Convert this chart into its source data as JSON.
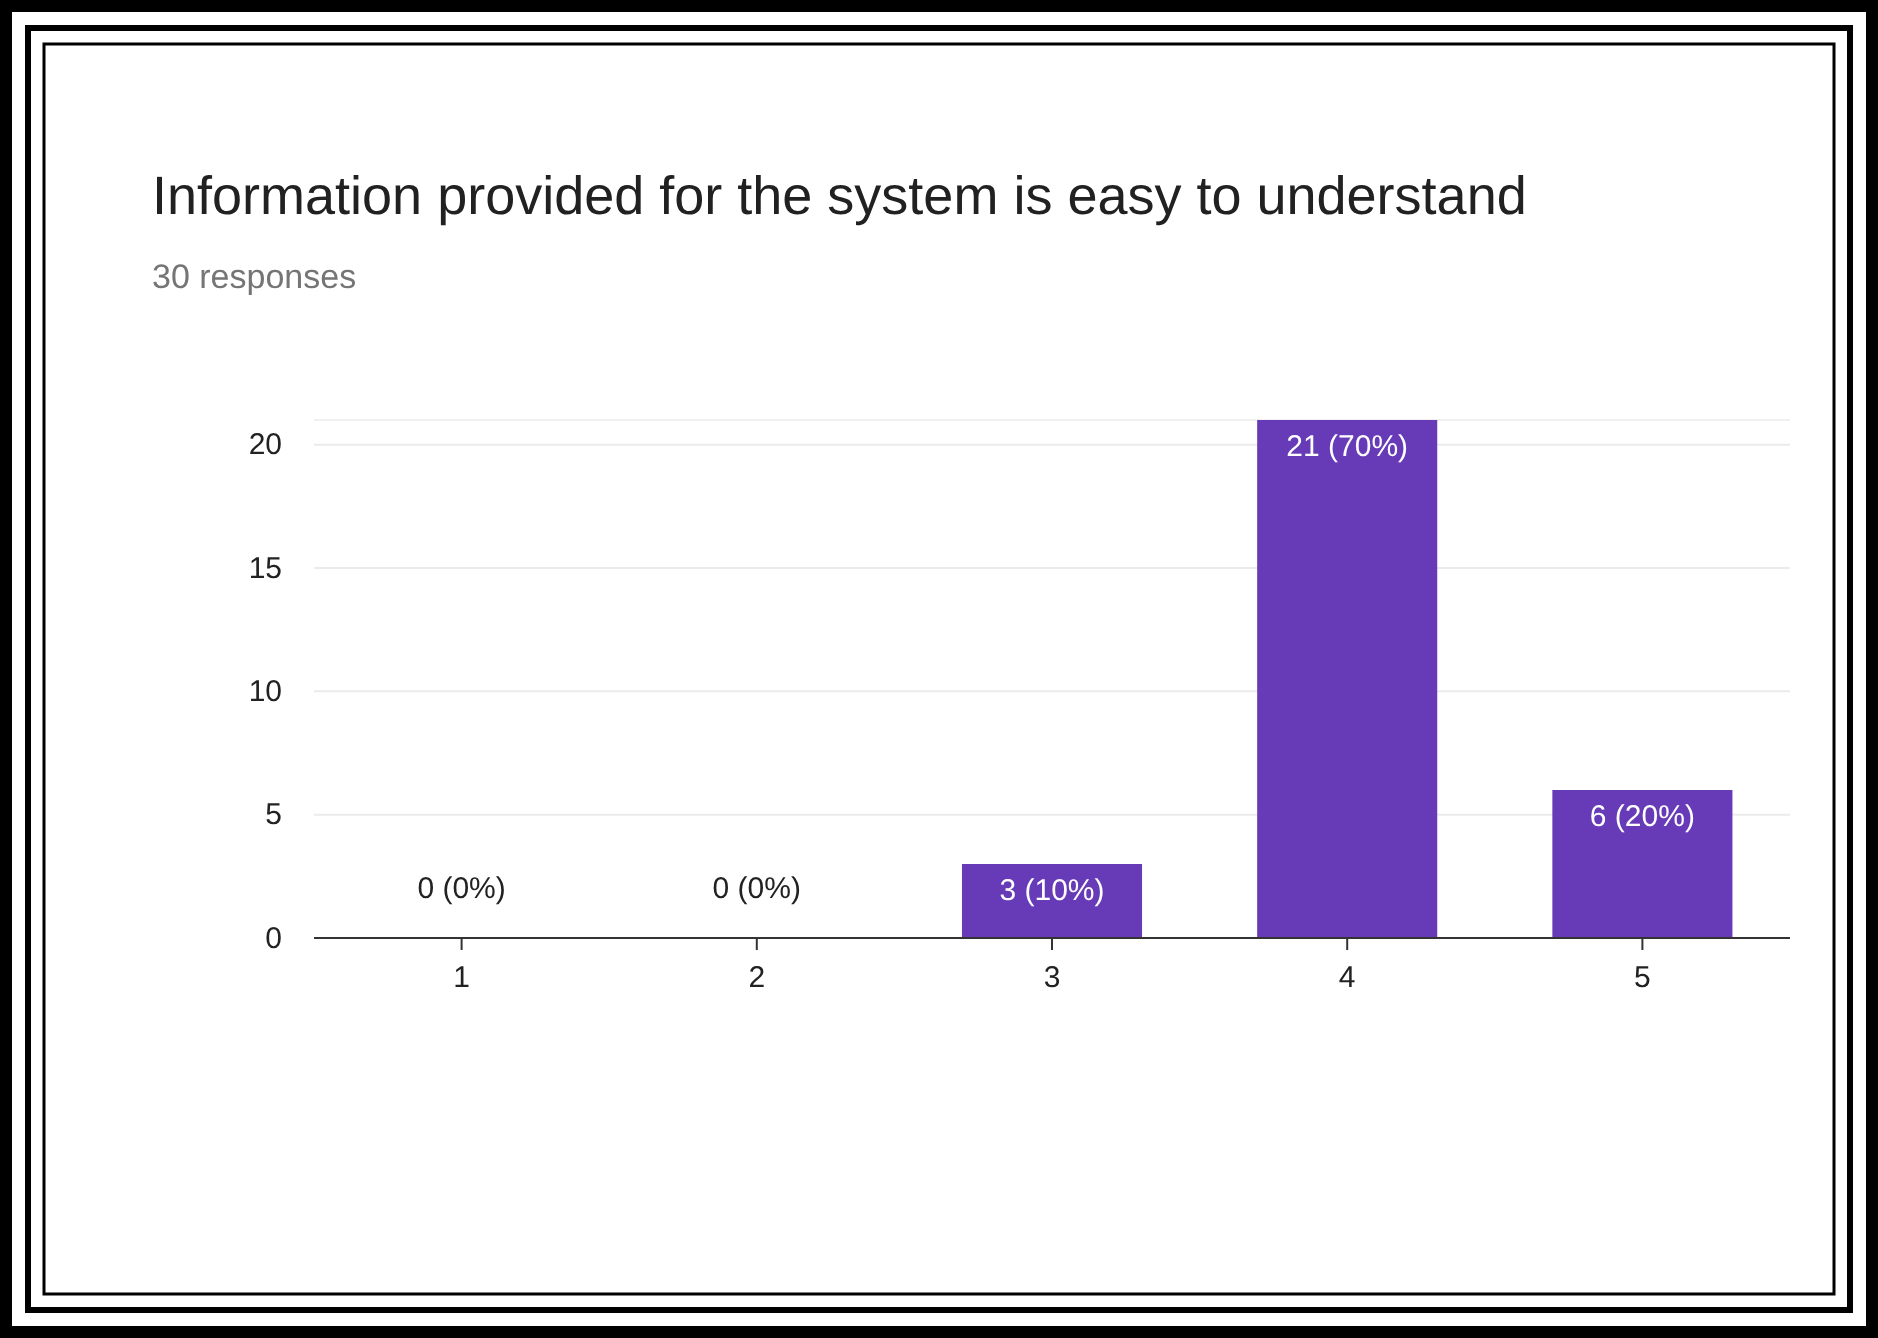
{
  "chart_data": {
    "type": "bar",
    "title": "Information provided for the system is easy to understand",
    "subtitle": "30 responses",
    "categories": [
      "1",
      "2",
      "3",
      "4",
      "5"
    ],
    "values": [
      0,
      0,
      3,
      21,
      6
    ],
    "value_labels": [
      "0 (0%)",
      "0 (0%)",
      "3 (10%)",
      "21 (70%)",
      "6 (20%)"
    ],
    "color": "#673ab7",
    "ylim": [
      0,
      21
    ],
    "yticks": [
      0,
      5,
      10,
      15,
      20
    ],
    "grid": "y",
    "legend": false
  }
}
